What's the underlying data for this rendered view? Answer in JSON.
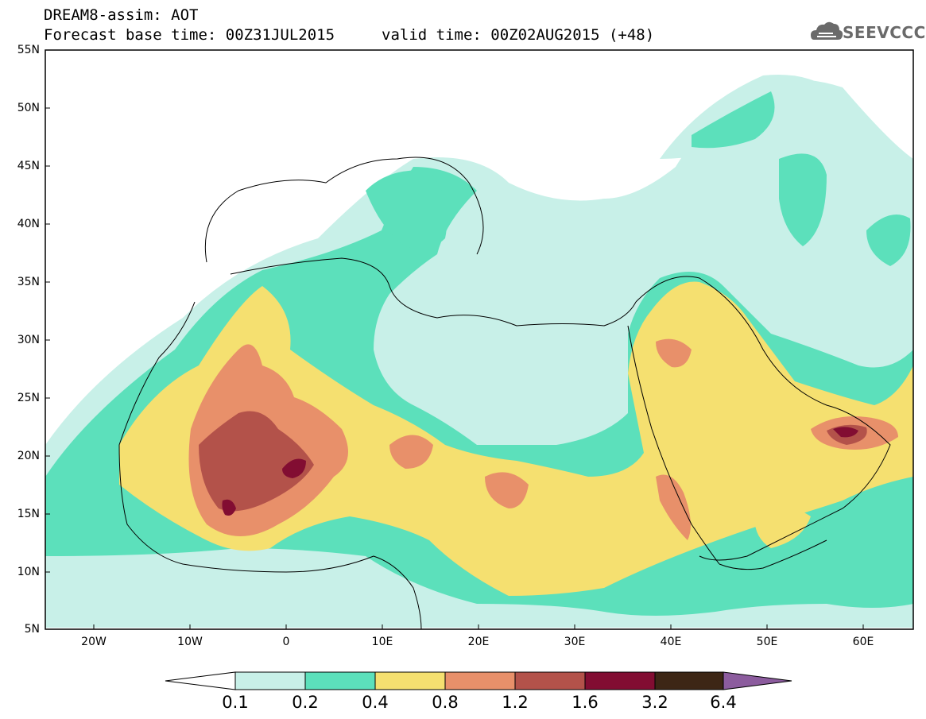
{
  "header": {
    "model_title": "DREAM8-assim: AOT",
    "base_time": "Forecast base time: 00Z31JUL2015",
    "valid_time": "valid time: 00Z02AUG2015 (+48)",
    "logo_text": "SEEVCCC"
  },
  "axes": {
    "lat_labels": [
      "55N",
      "50N",
      "45N",
      "40N",
      "35N",
      "30N",
      "25N",
      "20N",
      "15N",
      "10N",
      "5N"
    ],
    "lon_labels": [
      "20W",
      "10W",
      "0",
      "10E",
      "20E",
      "30E",
      "40E",
      "50E",
      "60E"
    ]
  },
  "colorbar": {
    "levels": [
      "0.1",
      "0.2",
      "0.4",
      "0.8",
      "1.2",
      "1.6",
      "3.2",
      "6.4"
    ],
    "colors": [
      "#ffffff",
      "#c8f0e8",
      "#5ce0bb",
      "#f5e070",
      "#e8906a",
      "#b3524a",
      "#820d32",
      "#3d2615",
      "#8c5c9e"
    ]
  }
}
